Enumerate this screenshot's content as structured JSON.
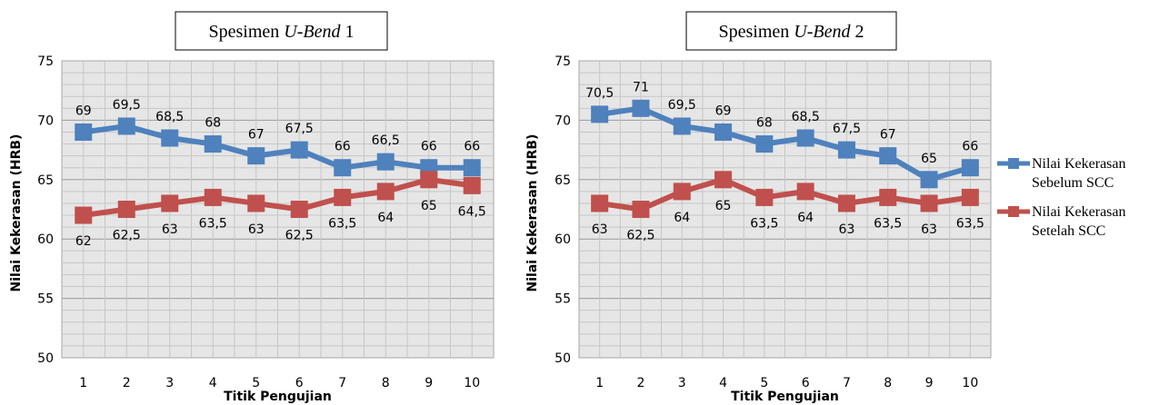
{
  "chart_data": [
    {
      "type": "line",
      "title_parts": [
        "Spesimen ",
        "U-Bend",
        " 1"
      ],
      "xlabel": "Titik Pengujian",
      "ylabel": "Nilai Kekerasan (HRB)",
      "ylim": [
        50,
        75
      ],
      "yticks": [
        "50",
        "55",
        "60",
        "65",
        "70",
        "75"
      ],
      "categories": [
        "1",
        "2",
        "3",
        "4",
        "5",
        "6",
        "7",
        "8",
        "9",
        "10"
      ],
      "grid": true,
      "series": [
        {
          "name": "Nilai Kekerasan Sebelum SCC",
          "color": "#4f81bd",
          "values": [
            69,
            69.5,
            68.5,
            68,
            67,
            67.5,
            66,
            66.5,
            66,
            66
          ],
          "labels": [
            "69",
            "69,5",
            "68,5",
            "68",
            "67",
            "67,5",
            "66",
            "66,5",
            "66",
            "66"
          ],
          "label_side": "above"
        },
        {
          "name": "Nilai Kekerasan Setelah SCC",
          "color": "#c0504d",
          "values": [
            62,
            62.5,
            63,
            63.5,
            63,
            62.5,
            63.5,
            64,
            65,
            64.5
          ],
          "labels": [
            "62",
            "62,5",
            "63",
            "63,5",
            "63",
            "62,5",
            "63,5",
            "64",
            "65",
            "64,5"
          ],
          "label_side": "below"
        }
      ]
    },
    {
      "type": "line",
      "title_parts": [
        "Spesimen ",
        "U-Bend",
        " 2"
      ],
      "xlabel": "Titik Pengujian",
      "ylabel": "Nilai Kekerasan (HRB)",
      "ylim": [
        50,
        75
      ],
      "yticks": [
        "50",
        "55",
        "60",
        "65",
        "70",
        "75"
      ],
      "categories": [
        "1",
        "2",
        "3",
        "4",
        "5",
        "6",
        "7",
        "8",
        "9",
        "10"
      ],
      "grid": true,
      "legend": {
        "placement": "right",
        "entries": [
          {
            "line1": "Nilai Kekerasan",
            "line2": "Sebelum SCC",
            "color": "#4f81bd"
          },
          {
            "line1": "Nilai Kekerasan",
            "line2": "Setelah SCC",
            "color": "#c0504d"
          }
        ]
      },
      "series": [
        {
          "name": "Nilai Kekerasan Sebelum SCC",
          "color": "#4f81bd",
          "values": [
            70.5,
            71,
            69.5,
            69,
            68,
            68.5,
            67.5,
            67,
            65,
            66
          ],
          "labels": [
            "70,5",
            "71",
            "69,5",
            "69",
            "68",
            "68,5",
            "67,5",
            "67",
            "65",
            "66"
          ],
          "label_side": "above"
        },
        {
          "name": "Nilai Kekerasan Setelah SCC",
          "color": "#c0504d",
          "values": [
            63,
            62.5,
            64,
            65,
            63.5,
            64,
            63,
            63.5,
            63,
            63.5
          ],
          "labels": [
            "63",
            "62,5",
            "64",
            "65",
            "63,5",
            "64",
            "63",
            "63,5",
            "63",
            "63,5"
          ],
          "label_side": "below"
        }
      ]
    }
  ]
}
